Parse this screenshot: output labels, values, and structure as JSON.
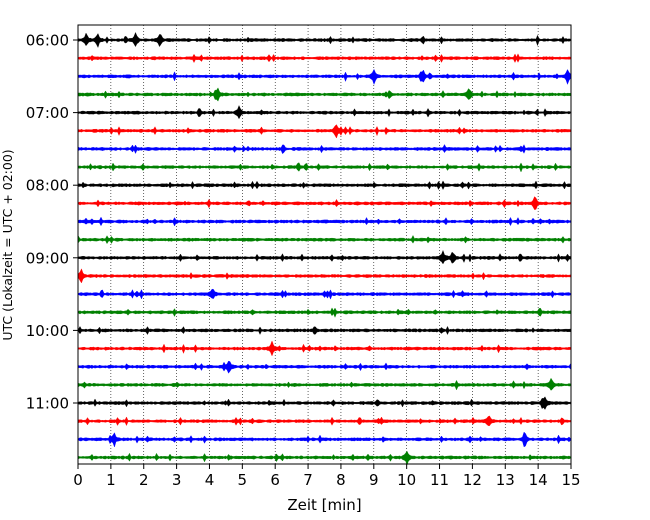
{
  "chart_data": {
    "type": "line",
    "title": "",
    "xlabel": "Zeit  [min]",
    "ylabel": "UTC (Lokalzeit = UTC + 02:00)",
    "xlim": [
      0,
      15
    ],
    "x_ticks": [
      0,
      1,
      2,
      3,
      4,
      5,
      6,
      7,
      8,
      9,
      10,
      11,
      12,
      13,
      14,
      15
    ],
    "x_tick_labels": [
      "0",
      "1",
      "2",
      "3",
      "4",
      "5",
      "6",
      "7",
      "8",
      "9",
      "10",
      "11",
      "12",
      "13",
      "14",
      "15"
    ],
    "grid": "vertical dotted",
    "line_interval_minutes": 15,
    "y_tick_labels": [
      "06:00",
      "07:00",
      "08:00",
      "09:00",
      "10:00",
      "11:00"
    ],
    "colors": [
      "#000000",
      "#ff0000",
      "#0000ff",
      "#008000"
    ],
    "series": [
      {
        "start": "06:00",
        "color": "#000000",
        "events_min": [
          0.25,
          0.6,
          1.75,
          2.5
        ]
      },
      {
        "start": "06:15",
        "color": "#ff0000",
        "events_min": []
      },
      {
        "start": "06:30",
        "color": "#0000ff",
        "events_min": [
          9.0,
          10.5,
          14.9
        ]
      },
      {
        "start": "06:45",
        "color": "#008000",
        "events_min": [
          4.25,
          11.9
        ]
      },
      {
        "start": "07:00",
        "color": "#000000",
        "events_min": [
          4.9
        ]
      },
      {
        "start": "07:15",
        "color": "#ff0000",
        "events_min": [
          7.85
        ]
      },
      {
        "start": "07:30",
        "color": "#0000ff",
        "events_min": []
      },
      {
        "start": "07:45",
        "color": "#008000",
        "events_min": []
      },
      {
        "start": "08:00",
        "color": "#000000",
        "events_min": []
      },
      {
        "start": "08:15",
        "color": "#ff0000",
        "events_min": [
          13.9
        ]
      },
      {
        "start": "08:30",
        "color": "#0000ff",
        "events_min": []
      },
      {
        "start": "08:45",
        "color": "#008000",
        "events_min": []
      },
      {
        "start": "09:00",
        "color": "#000000",
        "events_min": [
          11.1,
          11.4
        ]
      },
      {
        "start": "09:15",
        "color": "#ff0000",
        "events_min": [
          0.1
        ]
      },
      {
        "start": "09:30",
        "color": "#0000ff",
        "events_min": [
          4.1
        ]
      },
      {
        "start": "09:45",
        "color": "#008000",
        "events_min": []
      },
      {
        "start": "10:00",
        "color": "#000000",
        "events_min": []
      },
      {
        "start": "10:15",
        "color": "#ff0000",
        "events_min": [
          5.9
        ]
      },
      {
        "start": "10:30",
        "color": "#0000ff",
        "events_min": [
          4.6
        ]
      },
      {
        "start": "10:45",
        "color": "#008000",
        "events_min": [
          14.4
        ]
      },
      {
        "start": "11:00",
        "color": "#000000",
        "events_min": [
          14.2
        ]
      },
      {
        "start": "11:15",
        "color": "#ff0000",
        "events_min": [
          12.5
        ]
      },
      {
        "start": "11:30",
        "color": "#0000ff",
        "events_min": [
          1.1,
          13.6
        ]
      },
      {
        "start": "11:45",
        "color": "#008000",
        "events_min": [
          10.0
        ]
      }
    ]
  }
}
